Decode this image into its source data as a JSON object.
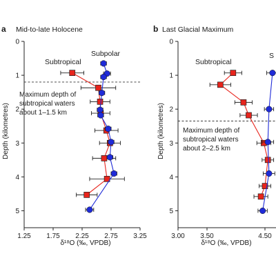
{
  "chart_data": [
    {
      "type": "scatter",
      "panel_letter": "a",
      "title": "Mid-to-late Holocene",
      "xlabel": "δ¹⁸O (‰, VPDB)",
      "ylabel": "Depth (kilometres)",
      "xlim": [
        1.25,
        3.25
      ],
      "ylim": [
        0,
        5.5
      ],
      "y_inverted": true,
      "xticks": [
        "1.25",
        "1.75",
        "2.25",
        "2.75",
        "3.25"
      ],
      "yticks": [
        "0",
        "1",
        "2",
        "3",
        "4",
        "5"
      ],
      "dashed_line_depth": 1.2,
      "annotation": [
        "Maximum depth of",
        "subtropical waters",
        "about 1–1.5 km"
      ],
      "series": [
        {
          "name": "Subtropical",
          "marker": "square",
          "color": "#e8241c",
          "points": [
            {
              "x": 2.08,
              "y": 0.93,
              "xerr": 0.2
            },
            {
              "x": 2.53,
              "y": 1.37,
              "xerr": 0.3
            },
            {
              "x": 2.56,
              "y": 1.78,
              "xerr": 0.17
            },
            {
              "x": 2.57,
              "y": 2.12,
              "xerr": 0.16
            },
            {
              "x": 2.67,
              "y": 2.63,
              "xerr": 0.2
            },
            {
              "x": 2.73,
              "y": 3.0,
              "xerr": 0.18
            },
            {
              "x": 2.63,
              "y": 3.45,
              "xerr": 0.2
            },
            {
              "x": 2.68,
              "y": 4.06,
              "xerr": 0.3
            },
            {
              "x": 2.33,
              "y": 4.53,
              "xerr": 0.18
            }
          ]
        },
        {
          "name": "Subpolar",
          "marker": "circle",
          "color": "#1f2bd8",
          "points": [
            {
              "x": 2.62,
              "y": 0.65,
              "xerr": 0.05
            },
            {
              "x": 2.68,
              "y": 0.95,
              "xerr": 0.06
            },
            {
              "x": 2.62,
              "y": 1.05,
              "xerr": 0.05
            },
            {
              "x": 2.59,
              "y": 1.52,
              "xerr": 0.05
            },
            {
              "x": 2.56,
              "y": 2.02,
              "xerr": 0.05
            },
            {
              "x": 2.57,
              "y": 2.18,
              "xerr": 0.05
            },
            {
              "x": 2.7,
              "y": 2.58,
              "xerr": 0.05
            },
            {
              "x": 2.75,
              "y": 2.97,
              "xerr": 0.05
            },
            {
              "x": 2.73,
              "y": 3.42,
              "xerr": 0.05
            },
            {
              "x": 2.8,
              "y": 3.9,
              "xerr": 0.05
            },
            {
              "x": 2.38,
              "y": 4.97,
              "xerr": 0.07
            }
          ]
        }
      ]
    },
    {
      "type": "scatter",
      "panel_letter": "b",
      "title": "Last Glacial Maximum",
      "xlabel": "δ¹⁸O (‰, VPDB)",
      "ylabel": "Depth (kilometres)",
      "xlim": [
        3.0,
        5.0
      ],
      "ylim": [
        0,
        5.5
      ],
      "y_inverted": true,
      "xticks": [
        "3.00",
        "3.50",
        "4.50"
      ],
      "yticks": [
        "0",
        "1",
        "2",
        "3",
        "4",
        "5"
      ],
      "dashed_line_depth": 2.35,
      "annotation": [
        "Maximum depth of",
        "subtropical waters",
        "about 2–2.5 km"
      ],
      "series": [
        {
          "name": "Subtropical",
          "marker": "square",
          "color": "#e8241c",
          "points": [
            {
              "x": 3.95,
              "y": 0.93,
              "xerr": 0.15
            },
            {
              "x": 3.73,
              "y": 1.28,
              "xerr": 0.18
            },
            {
              "x": 4.13,
              "y": 1.8,
              "xerr": 0.15
            },
            {
              "x": 4.22,
              "y": 2.18,
              "xerr": 0.15
            },
            {
              "x": 4.48,
              "y": 3.0,
              "xerr": 0.12
            },
            {
              "x": 4.55,
              "y": 3.5,
              "xerr": 0.1
            },
            {
              "x": 4.5,
              "y": 4.27,
              "xerr": 0.1
            },
            {
              "x": 4.43,
              "y": 4.58,
              "xerr": 0.12
            }
          ]
        },
        {
          "name": "Subpolar",
          "marker": "circle",
          "color": "#1f2bd8",
          "points": [
            {
              "x": 4.63,
              "y": 0.93,
              "xerr": 0.1
            },
            {
              "x": 4.57,
              "y": 2.0,
              "xerr": 0.08
            },
            {
              "x": 4.55,
              "y": 2.97,
              "xerr": 0.1
            },
            {
              "x": 4.57,
              "y": 3.9,
              "xerr": 0.1
            },
            {
              "x": 4.46,
              "y": 5.0,
              "xerr": 0.08
            }
          ]
        }
      ],
      "series_label_visible": "S"
    }
  ]
}
